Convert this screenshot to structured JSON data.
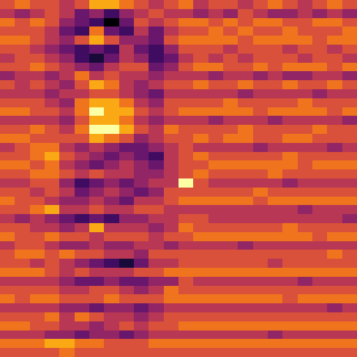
{
  "chart_data": {
    "type": "heatmap",
    "tick_labels": false,
    "color_range": [
      0,
      9
    ],
    "values": [
      [
        6,
        7,
        6,
        6,
        5,
        6,
        8,
        8,
        7,
        6,
        5,
        6,
        7,
        5,
        6,
        6,
        5,
        6,
        7,
        6,
        5,
        6,
        7,
        6
      ],
      [
        5,
        4,
        5,
        6,
        5,
        3,
        4,
        2,
        4,
        5,
        6,
        5,
        5,
        4,
        5,
        4,
        6,
        5,
        4,
        4,
        5,
        4,
        5,
        4
      ],
      [
        7,
        6,
        7,
        6,
        4,
        3,
        2,
        0,
        3,
        6,
        5,
        6,
        7,
        7,
        6,
        7,
        6,
        7,
        7,
        6,
        6,
        7,
        7,
        6
      ],
      [
        6,
        6,
        6,
        5,
        3,
        2,
        7,
        3,
        2,
        5,
        3,
        5,
        6,
        6,
        7,
        6,
        7,
        6,
        6,
        7,
        6,
        6,
        6,
        7
      ],
      [
        7,
        7,
        6,
        5,
        4,
        6,
        8,
        6,
        4,
        4,
        3,
        6,
        7,
        7,
        7,
        7,
        6,
        7,
        7,
        7,
        7,
        6,
        7,
        7
      ],
      [
        6,
        6,
        5,
        4,
        3,
        2,
        3,
        2,
        5,
        3,
        2,
        4,
        6,
        6,
        6,
        5,
        6,
        6,
        6,
        5,
        6,
        6,
        5,
        6
      ],
      [
        5,
        6,
        6,
        5,
        4,
        2,
        1,
        3,
        5,
        4,
        2,
        3,
        5,
        6,
        5,
        6,
        5,
        6,
        6,
        6,
        5,
        6,
        6,
        5
      ],
      [
        6,
        6,
        7,
        6,
        5,
        4,
        3,
        5,
        6,
        6,
        3,
        4,
        6,
        7,
        7,
        6,
        6,
        7,
        6,
        7,
        7,
        7,
        6,
        7
      ],
      [
        4,
        5,
        5,
        4,
        5,
        7,
        5,
        6,
        5,
        5,
        4,
        5,
        5,
        5,
        4,
        5,
        5,
        4,
        5,
        4,
        4,
        5,
        5,
        4
      ],
      [
        6,
        5,
        6,
        5,
        4,
        6,
        8,
        7,
        5,
        4,
        5,
        6,
        6,
        7,
        6,
        6,
        7,
        6,
        6,
        7,
        6,
        6,
        7,
        6
      ],
      [
        5,
        5,
        5,
        4,
        5,
        5,
        6,
        6,
        5,
        4,
        3,
        5,
        5,
        5,
        5,
        5,
        4,
        5,
        5,
        5,
        5,
        4,
        5,
        5
      ],
      [
        6,
        6,
        6,
        5,
        4,
        7,
        8,
        8,
        7,
        5,
        4,
        6,
        6,
        6,
        6,
        7,
        6,
        6,
        6,
        6,
        7,
        6,
        6,
        6
      ],
      [
        7,
        7,
        6,
        6,
        5,
        7,
        9,
        8,
        8,
        6,
        5,
        6,
        7,
        7,
        7,
        7,
        7,
        6,
        7,
        7,
        7,
        7,
        6,
        7
      ],
      [
        5,
        5,
        5,
        5,
        4,
        6,
        8,
        8,
        7,
        5,
        4,
        5,
        5,
        5,
        4,
        5,
        5,
        5,
        4,
        5,
        5,
        5,
        5,
        4
      ],
      [
        6,
        6,
        7,
        6,
        5,
        7,
        9,
        9,
        8,
        6,
        5,
        7,
        6,
        6,
        6,
        6,
        7,
        6,
        6,
        6,
        6,
        7,
        6,
        6
      ],
      [
        7,
        7,
        6,
        6,
        6,
        6,
        8,
        7,
        6,
        4,
        5,
        6,
        6,
        7,
        6,
        7,
        7,
        6,
        6,
        7,
        7,
        6,
        6,
        6
      ],
      [
        5,
        6,
        7,
        7,
        5,
        4,
        5,
        4,
        3,
        3,
        4,
        5,
        6,
        5,
        5,
        5,
        5,
        4,
        5,
        5,
        5,
        5,
        4,
        5
      ],
      [
        6,
        6,
        7,
        8,
        6,
        5,
        4,
        3,
        4,
        3,
        2,
        5,
        6,
        7,
        6,
        6,
        6,
        6,
        6,
        7,
        6,
        6,
        6,
        6
      ],
      [
        7,
        7,
        6,
        7,
        5,
        4,
        3,
        4,
        5,
        4,
        3,
        5,
        6,
        6,
        7,
        7,
        7,
        7,
        7,
        7,
        6,
        7,
        7,
        7
      ],
      [
        6,
        6,
        7,
        7,
        6,
        5,
        6,
        5,
        5,
        4,
        4,
        5,
        6,
        7,
        6,
        6,
        6,
        6,
        7,
        6,
        6,
        6,
        6,
        6
      ],
      [
        5,
        5,
        6,
        6,
        4,
        2,
        3,
        4,
        3,
        4,
        5,
        5,
        9,
        6,
        5,
        5,
        5,
        5,
        5,
        4,
        5,
        5,
        5,
        5
      ],
      [
        6,
        6,
        5,
        6,
        5,
        3,
        4,
        5,
        4,
        3,
        4,
        6,
        6,
        6,
        6,
        6,
        6,
        7,
        6,
        6,
        6,
        6,
        6,
        6
      ],
      [
        7,
        6,
        6,
        5,
        4,
        4,
        5,
        4,
        3,
        5,
        5,
        6,
        7,
        7,
        7,
        7,
        7,
        6,
        7,
        7,
        7,
        7,
        7,
        7
      ],
      [
        6,
        6,
        7,
        8,
        5,
        5,
        6,
        5,
        5,
        6,
        6,
        5,
        5,
        5,
        5,
        5,
        5,
        5,
        5,
        5,
        4,
        5,
        5,
        5
      ],
      [
        5,
        4,
        5,
        4,
        3,
        2,
        3,
        2,
        4,
        4,
        5,
        5,
        6,
        6,
        5,
        5,
        5,
        5,
        5,
        5,
        5,
        5,
        5,
        4
      ],
      [
        6,
        6,
        5,
        5,
        4,
        5,
        8,
        5,
        5,
        5,
        4,
        5,
        7,
        6,
        6,
        6,
        6,
        6,
        6,
        7,
        6,
        6,
        6,
        6
      ],
      [
        7,
        6,
        6,
        7,
        6,
        6,
        5,
        6,
        6,
        6,
        5,
        6,
        6,
        7,
        7,
        7,
        7,
        7,
        7,
        7,
        7,
        6,
        7,
        7
      ],
      [
        5,
        6,
        6,
        5,
        4,
        4,
        5,
        4,
        4,
        5,
        5,
        4,
        5,
        5,
        5,
        5,
        4,
        5,
        5,
        5,
        5,
        5,
        5,
        5
      ],
      [
        6,
        7,
        7,
        6,
        7,
        6,
        6,
        5,
        5,
        4,
        6,
        6,
        6,
        6,
        6,
        6,
        6,
        6,
        6,
        6,
        6,
        6,
        7,
        6
      ],
      [
        6,
        6,
        5,
        6,
        5,
        4,
        3,
        2,
        1,
        3,
        5,
        5,
        6,
        6,
        6,
        6,
        6,
        6,
        5,
        6,
        6,
        6,
        6,
        6
      ],
      [
        7,
        7,
        7,
        6,
        5,
        6,
        5,
        5,
        5,
        6,
        6,
        7,
        7,
        7,
        7,
        7,
        7,
        7,
        7,
        7,
        7,
        7,
        7,
        7
      ],
      [
        5,
        5,
        5,
        5,
        4,
        3,
        3,
        4,
        3,
        3,
        4,
        4,
        6,
        5,
        5,
        5,
        5,
        5,
        5,
        5,
        4,
        5,
        5,
        5
      ],
      [
        6,
        6,
        6,
        6,
        5,
        5,
        6,
        6,
        5,
        4,
        5,
        7,
        6,
        6,
        6,
        6,
        6,
        6,
        6,
        6,
        6,
        6,
        6,
        6
      ],
      [
        7,
        6,
        7,
        7,
        6,
        6,
        6,
        7,
        6,
        6,
        6,
        7,
        7,
        7,
        7,
        7,
        7,
        7,
        7,
        6,
        7,
        7,
        7,
        7
      ],
      [
        5,
        5,
        5,
        5,
        4,
        4,
        3,
        4,
        4,
        3,
        4,
        5,
        5,
        5,
        5,
        5,
        5,
        5,
        5,
        5,
        5,
        5,
        4,
        5
      ],
      [
        6,
        6,
        6,
        7,
        5,
        7,
        6,
        5,
        5,
        4,
        5,
        6,
        6,
        6,
        6,
        6,
        6,
        6,
        6,
        6,
        6,
        6,
        6,
        6
      ],
      [
        7,
        7,
        6,
        6,
        5,
        5,
        4,
        5,
        6,
        5,
        6,
        6,
        7,
        7,
        7,
        7,
        7,
        7,
        7,
        7,
        7,
        7,
        7,
        7
      ],
      [
        5,
        5,
        5,
        4,
        4,
        3,
        4,
        4,
        3,
        4,
        5,
        5,
        5,
        5,
        5,
        5,
        5,
        5,
        4,
        5,
        5,
        5,
        5,
        5
      ],
      [
        7,
        7,
        7,
        8,
        8,
        7,
        7,
        6,
        6,
        6,
        7,
        7,
        7,
        7,
        7,
        7,
        7,
        7,
        7,
        7,
        7,
        7,
        7,
        7
      ],
      [
        6,
        6,
        6,
        6,
        7,
        6,
        6,
        6,
        6,
        6,
        6,
        6,
        6,
        6,
        6,
        6,
        6,
        6,
        6,
        6,
        6,
        6,
        6,
        6
      ]
    ]
  }
}
